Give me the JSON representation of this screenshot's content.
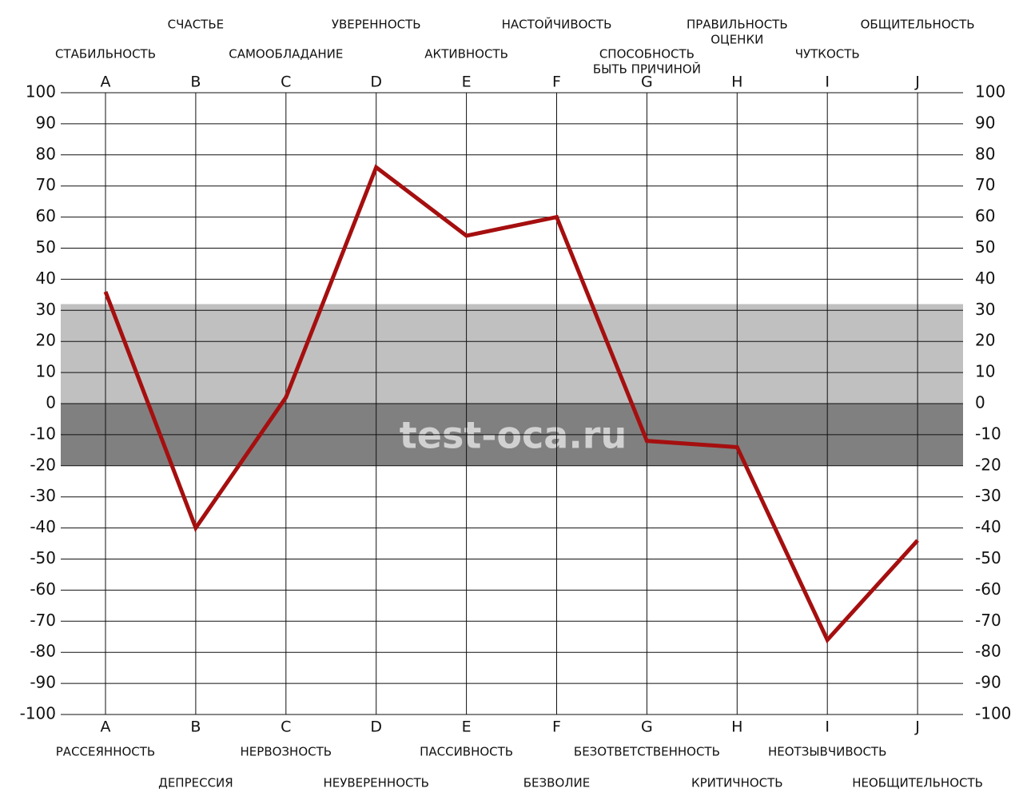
{
  "chart_data": {
    "type": "line",
    "categories": [
      "A",
      "B",
      "C",
      "D",
      "E",
      "F",
      "G",
      "H",
      "I",
      "J"
    ],
    "top_labels": [
      [
        "СТАБИЛЬНОСТЬ"
      ],
      [
        "СЧАСТЬЕ"
      ],
      [
        "САМООБЛАДАНИЕ"
      ],
      [
        "УВЕРЕННОСТЬ"
      ],
      [
        "АКТИВНОСТЬ"
      ],
      [
        "НАСТОЙЧИВОСТЬ"
      ],
      [
        "СПОСОБНОСТЬ",
        "БЫТЬ ПРИЧИНОЙ"
      ],
      [
        "ПРАВИЛЬНОСТЬ",
        "ОЦЕНКИ"
      ],
      [
        "ЧУТКОСТЬ"
      ],
      [
        "ОБЩИТЕЛЬНОСТЬ"
      ]
    ],
    "bottom_labels": [
      "РАССЕЯННОСТЬ",
      "ДЕПРЕССИЯ",
      "НЕРВОЗНОСТЬ",
      "НЕУВЕРЕННОСТЬ",
      "ПАССИВНОСТЬ",
      "БЕЗВОЛИЕ",
      "БЕЗОТВЕТСТВЕННОСТЬ",
      "КРИТИЧНОСТЬ",
      "НЕОТЗЫВЧИВОСТЬ",
      "НЕОБЩИТЕЛЬНОСТЬ"
    ],
    "series": [
      {
        "color": "#a50f0f",
        "values": [
          36,
          -40,
          2,
          76,
          54,
          60,
          -12,
          -14,
          -76,
          -44
        ]
      }
    ],
    "ylim": [
      -100,
      100
    ],
    "yticks": [
      100,
      90,
      80,
      70,
      60,
      50,
      40,
      30,
      20,
      10,
      0,
      -10,
      -20,
      -30,
      -40,
      -50,
      -60,
      -70,
      -80,
      -90,
      -100
    ],
    "bands": [
      {
        "from": 0,
        "to": 32,
        "color": "#c0c0c0"
      },
      {
        "from": -20,
        "to": 0,
        "color": "#808080"
      }
    ],
    "grid": true,
    "watermark": "test-oca.ru"
  }
}
